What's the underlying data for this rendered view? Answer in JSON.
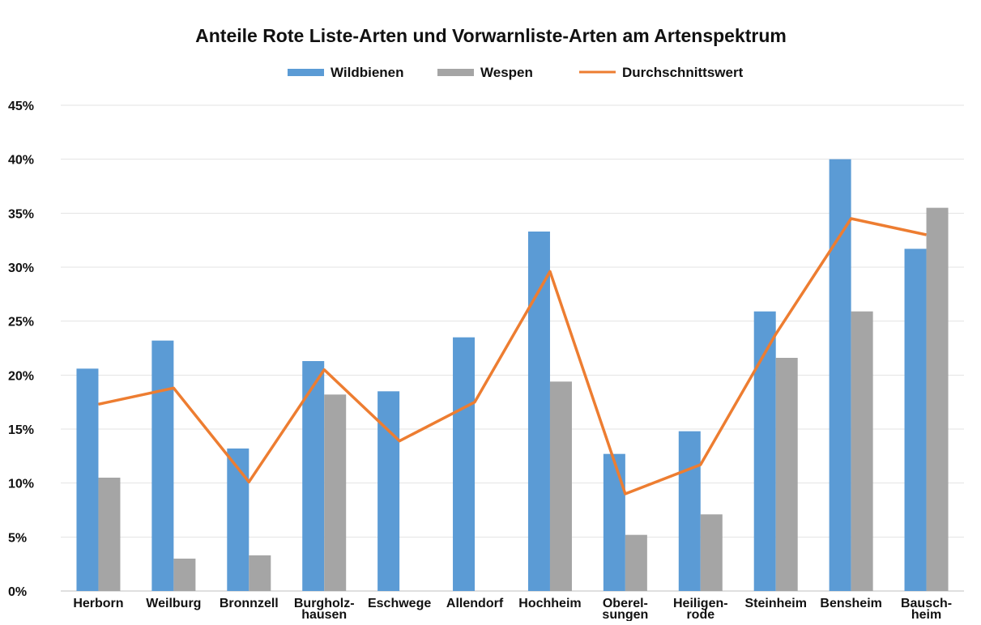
{
  "chart_data": {
    "type": "bar",
    "title": "Anteile Rote Liste-Arten und Vorwarnliste-Arten am Artenspektrum",
    "categories": [
      [
        "Herborn"
      ],
      [
        "Weilburg"
      ],
      [
        "Bronnzell"
      ],
      [
        "Burgholz-",
        "hausen"
      ],
      [
        "Eschwege"
      ],
      [
        "Allendorf"
      ],
      [
        "Hochheim"
      ],
      [
        "Oberel-",
        "sungen"
      ],
      [
        "Heiligen-",
        "rode"
      ],
      [
        "Steinheim"
      ],
      [
        "Bensheim"
      ],
      [
        "Bausch-",
        "heim"
      ]
    ],
    "series": [
      {
        "name": "Wildbienen",
        "type": "bar",
        "color": "#5b9bd5",
        "values": [
          20.6,
          23.2,
          13.2,
          21.3,
          18.5,
          23.5,
          33.3,
          12.7,
          14.8,
          25.9,
          40.0,
          31.7
        ]
      },
      {
        "name": "Wespen",
        "type": "bar",
        "color": "#a5a5a5",
        "values": [
          10.5,
          3.0,
          3.3,
          18.2,
          null,
          null,
          19.4,
          5.2,
          7.1,
          21.6,
          25.9,
          35.5
        ]
      },
      {
        "name": "Durchschnittswert",
        "type": "line",
        "color": "#ed7d31",
        "values": [
          17.3,
          18.8,
          10.1,
          20.5,
          13.9,
          17.5,
          29.6,
          9.0,
          11.7,
          23.8,
          34.5,
          33.0
        ]
      }
    ],
    "ylim": [
      0,
      45
    ],
    "yticks": [
      "0%",
      "5%",
      "10%",
      "15%",
      "20%",
      "25%",
      "30%",
      "35%",
      "40%",
      "45%"
    ],
    "grid": true,
    "legend": "top"
  }
}
